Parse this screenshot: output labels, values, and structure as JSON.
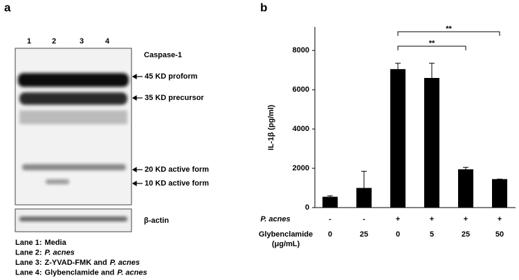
{
  "panel_a": {
    "label": "a",
    "lanes": [
      "1",
      "2",
      "3",
      "4"
    ],
    "target": "Caspase-1",
    "bands": [
      "45 KD proform",
      "35 KD precursor",
      "20 KD active form",
      "10 KD active form"
    ],
    "loading_control": "β-actin",
    "legend": [
      [
        {
          "t": "Lane 1:"
        },
        {
          "t": "Media"
        }
      ],
      [
        {
          "t": "Lane 2:"
        },
        {
          "t": "P. acnes",
          "i": true
        }
      ],
      [
        {
          "t": "Lane 3:"
        },
        {
          "t": "Z-YVAD-FMK and"
        },
        {
          "t": "P. acnes",
          "i": true
        }
      ],
      [
        {
          "t": "Lane 4:"
        },
        {
          "t": "Glybenclamide and"
        },
        {
          "t": "P. acnes",
          "i": true
        }
      ]
    ]
  },
  "chart_data": {
    "type": "bar",
    "label": "b",
    "y_label": "IL-1β (pg/ml)",
    "categories": [
      "0",
      "25",
      "0",
      "5",
      "25",
      "50"
    ],
    "p_acnes": [
      "-",
      "-",
      "+",
      "+",
      "+",
      "+"
    ],
    "row_labels": {
      "p_acnes": "P. acnes",
      "dose": "Glybenclamide",
      "dose_unit": "(μg/mL)"
    },
    "values": [
      550,
      1000,
      7050,
      6600,
      1950,
      1450
    ],
    "errors": [
      50,
      850,
      300,
      750,
      100,
      0
    ],
    "color": "#000000",
    "ylim": [
      0,
      9200
    ],
    "yticks": [
      0,
      2000,
      4000,
      6000,
      8000
    ],
    "significance": [
      {
        "from": 2,
        "to": 5,
        "label": "**"
      },
      {
        "from": 2,
        "to": 4,
        "label": "**"
      }
    ]
  }
}
